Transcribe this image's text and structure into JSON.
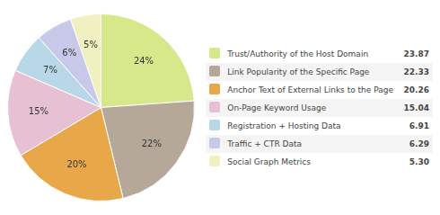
{
  "chart_data": {
    "type": "pie",
    "categories": [
      "Trust/Authority of the Host Domain",
      "Link Popularity of the Specific Page",
      "Anchor Text of External Links to the Page",
      "On-Page Keyword Usage",
      "Registration + Hosting Data",
      "Traffic + CTR Data",
      "Social Graph Metrics"
    ],
    "values": [
      23.87,
      22.33,
      20.26,
      15.04,
      6.91,
      6.29,
      5.3
    ],
    "value_labels": [
      "24%",
      "22%",
      "20%",
      "15%",
      "7%",
      "6%",
      "5%"
    ],
    "data_labels": true,
    "colors": [
      "#d6e88a",
      "#b5a898",
      "#e8a84a",
      "#e8c0d4",
      "#b8d8e8",
      "#c8c8e8",
      "#f0f0c0"
    ],
    "legend": "right"
  }
}
